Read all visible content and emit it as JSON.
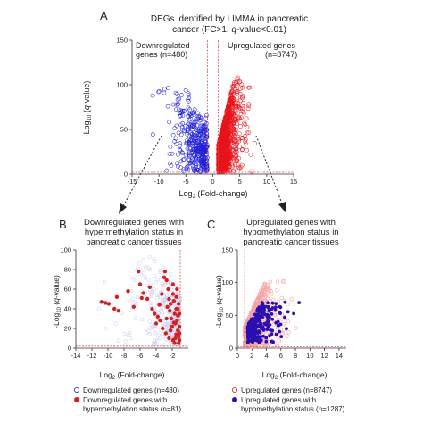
{
  "panels": {
    "A": {
      "letter": "A",
      "title_line1": "DEGs identified by LIMMA in pancreatic",
      "title_line2_pre": "cancer (FC>1, ",
      "title_line2_q": "q",
      "title_line2_post": "-value<0.01)",
      "left_label_line1": "Downregulated",
      "left_label_line2": "genes (n=480)",
      "right_label_line1": "Upregulated genes",
      "right_label_line2": "(n=8747)"
    },
    "B": {
      "letter": "B",
      "title_line1": "Downregulated genes with",
      "title_line2": "hypermethylation status in",
      "title_line3": "pancreatic cancer tissues",
      "legend": [
        {
          "label": "Downregulated genes (n=480)"
        },
        {
          "label_line1": "Downregulated genes with",
          "label_line2": "hypermethylation status (n=81)"
        }
      ]
    },
    "C": {
      "letter": "C",
      "title_line1": "Upregulated genes with",
      "title_line2": "hypomethylation status in",
      "title_line3": "pancreatic cancer tissues",
      "legend": [
        {
          "label": "Upregulated genes (n=8747)"
        },
        {
          "label_line1": "Upregulated genes with",
          "label_line2": "hypomethylation status (n=1287)"
        }
      ]
    }
  },
  "axis_text": {
    "ylabel_main": "-Log",
    "ylabel_sub": "10",
    "ylabel_paren_open": " (",
    "ylabel_q": "q",
    "ylabel_tail": "-value)",
    "xlabel_main": "Log",
    "xlabel_sub": "2",
    "xlabel_tail": " (Fold-change)"
  },
  "colors": {
    "down": "#1f1fd6",
    "up": "#e8141b",
    "up_light": "#f5a3a3",
    "hyper_red": "#d42020",
    "hypo_blue": "#2a0fb0",
    "threshold": "#e05050",
    "down_faint": "#c9c9f2"
  },
  "chart_data": [
    {
      "type": "scatter",
      "panel": "A",
      "xlim": [
        -15,
        15
      ],
      "ylim": [
        0,
        150
      ],
      "xticks": [
        -15,
        -10,
        -5,
        0,
        5,
        10,
        15
      ],
      "yticks": [
        0,
        50,
        100,
        150
      ],
      "thresholds": {
        "x": [
          -1,
          1
        ],
        "y": 2
      },
      "series": [
        {
          "name": "Downregulated genes (n=480)",
          "count": 480,
          "x_range": [
            -11.5,
            -1
          ],
          "y_range": [
            2,
            105
          ]
        },
        {
          "name": "Upregulated genes (n=8747)",
          "count": 8747,
          "x_range": [
            1,
            8
          ],
          "y_range": [
            2,
            110
          ]
        }
      ]
    },
    {
      "type": "scatter",
      "panel": "B",
      "xlim": [
        -14,
        0
      ],
      "ylim": [
        0,
        100
      ],
      "xticks": [
        -14,
        -12,
        -10,
        -8,
        -6,
        -4,
        -2
      ],
      "yticks": [
        0,
        20,
        40,
        60,
        80,
        100
      ],
      "thresholds": {
        "x": [
          -1
        ],
        "y": 2
      },
      "series": [
        {
          "name": "Downregulated genes (n=480)",
          "count": 480
        },
        {
          "name": "Downregulated genes with hypermethylation status (n=81)",
          "count": 81,
          "points": [
            [
              -10.3,
              46
            ],
            [
              -10.8,
              47
            ],
            [
              -9.9,
              45
            ],
            [
              -9.2,
              40
            ],
            [
              -8.7,
              38
            ],
            [
              -8.9,
              52
            ],
            [
              -6.2,
              78
            ],
            [
              -6.0,
              65
            ],
            [
              -5.6,
              56
            ],
            [
              -5.8,
              51
            ],
            [
              -5.1,
              50
            ],
            [
              -4.8,
              62
            ],
            [
              -4.5,
              40
            ],
            [
              -4.2,
              35
            ],
            [
              -3.8,
              32
            ],
            [
              -3.6,
              44
            ],
            [
              -3.3,
              55
            ],
            [
              -3.0,
              72
            ],
            [
              -2.9,
              78
            ],
            [
              -2.7,
              69
            ],
            [
              -2.6,
              42
            ],
            [
              -2.5,
              60
            ],
            [
              -2.4,
              50
            ],
            [
              -2.3,
              38
            ],
            [
              -2.2,
              45
            ],
            [
              -2.1,
              30
            ],
            [
              -2.0,
              22
            ],
            [
              -1.9,
              55
            ],
            [
              -1.8,
              48
            ],
            [
              -1.7,
              35
            ],
            [
              -1.6,
              25
            ],
            [
              -1.5,
              40
            ],
            [
              -1.5,
              52
            ],
            [
              -1.4,
              28
            ],
            [
              -1.3,
              18
            ],
            [
              -1.3,
              33
            ],
            [
              -1.2,
              12
            ],
            [
              -1.2,
              45
            ],
            [
              -1.1,
              22
            ],
            [
              -1.1,
              8
            ],
            [
              -6.8,
              42
            ],
            [
              -7.5,
              58
            ],
            [
              -4.0,
              25
            ],
            [
              -3.2,
              20
            ],
            [
              -2.8,
              15
            ],
            [
              -1.9,
              65
            ],
            [
              -2.2,
              18
            ],
            [
              -1.6,
              10
            ],
            [
              -1.4,
              60
            ],
            [
              -1.2,
              5
            ],
            [
              -3.5,
              28
            ],
            [
              -2.7,
              30
            ],
            [
              -1.8,
              26
            ],
            [
              -1.5,
              14
            ],
            [
              -1.3,
              40
            ],
            [
              -1.1,
              35
            ],
            [
              -1.1,
              15
            ],
            [
              -2.4,
              10
            ],
            [
              -1.7,
              5
            ],
            [
              -1.9,
              8
            ]
          ]
        }
      ]
    },
    {
      "type": "scatter",
      "panel": "C",
      "xlim": [
        0,
        15
      ],
      "ylim": [
        0,
        150
      ],
      "xticks": [
        0,
        2,
        4,
        6,
        8,
        10,
        12,
        14
      ],
      "yticks": [
        0,
        50,
        100,
        150
      ],
      "thresholds": {
        "x": [
          1
        ],
        "y": 2
      },
      "series": [
        {
          "name": "Upregulated genes (n=8747)",
          "count": 8747
        },
        {
          "name": "Upregulated genes with hypomethylation status (n=1287)",
          "count": 1287
        }
      ]
    }
  ]
}
